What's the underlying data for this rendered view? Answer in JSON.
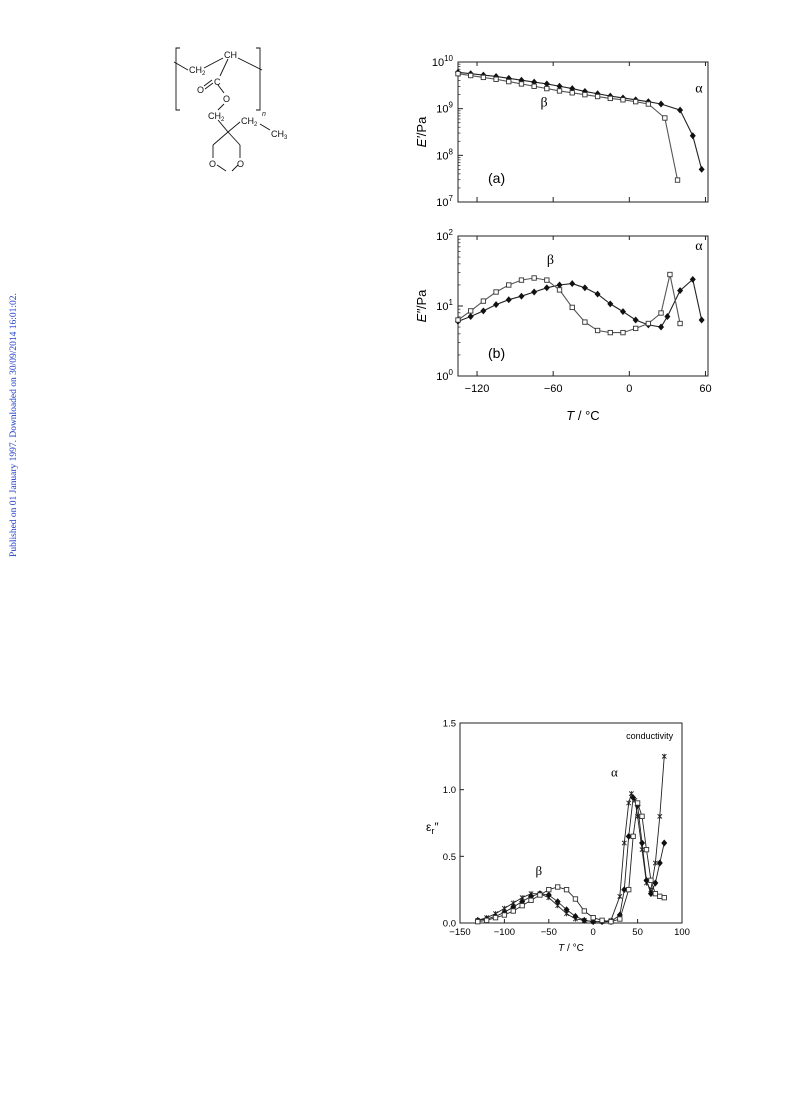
{
  "side_note": "Published on 01 January 1997. Downloaded on 30/09/2014 16:01:02.",
  "structure": {
    "labels": {
      "ch": "CH",
      "ch2_top": "CH",
      "o_carbonyl": "O",
      "c": "C",
      "o_ester": "O",
      "ch2_mid": "CH",
      "ch2_eth": "CH",
      "ch3": "CH",
      "n": "n",
      "o_ring_left": "O",
      "o_ring_right": "O",
      "sub2": "2",
      "sub3": "3"
    }
  },
  "chart_data": [
    {
      "id": "a",
      "type": "line",
      "panel_label": "(a)",
      "ylabel_var": "E′",
      "ylabel_unit": "/Pa",
      "yscale": "log",
      "ylim_exp": [
        7,
        10
      ],
      "yticks": [
        "10",
        "10",
        "10",
        "10"
      ],
      "ytick_exps": [
        "7",
        "8",
        "9",
        "10"
      ],
      "xlim": [
        -135,
        62
      ],
      "annotations": [
        {
          "text": "α",
          "x": 52,
          "y_exp": 9.35
        },
        {
          "text": "β",
          "x": -70,
          "y_exp": 9.05
        }
      ],
      "series": [
        {
          "marker": "diamond",
          "x": [
            -135,
            -125,
            -115,
            -105,
            -95,
            -85,
            -75,
            -65,
            -55,
            -45,
            -35,
            -25,
            -15,
            -5,
            5,
            15,
            25,
            40,
            50,
            57
          ],
          "y_exp": [
            9.78,
            9.75,
            9.72,
            9.69,
            9.65,
            9.61,
            9.57,
            9.53,
            9.48,
            9.43,
            9.37,
            9.32,
            9.27,
            9.23,
            9.19,
            9.15,
            9.1,
            8.97,
            8.42,
            7.7
          ]
        },
        {
          "marker": "square",
          "x": [
            -135,
            -125,
            -115,
            -105,
            -95,
            -85,
            -75,
            -65,
            -55,
            -45,
            -35,
            -25,
            -15,
            -5,
            5,
            15,
            28,
            38
          ],
          "y_exp": [
            9.75,
            9.71,
            9.67,
            9.63,
            9.58,
            9.53,
            9.48,
            9.43,
            9.38,
            9.34,
            9.3,
            9.26,
            9.22,
            9.19,
            9.15,
            9.1,
            8.8,
            7.47
          ]
        }
      ]
    },
    {
      "id": "b",
      "type": "line",
      "panel_label": "(b)",
      "ylabel_var": "E″",
      "ylabel_unit": "/Pa",
      "yscale": "log",
      "ylim_exp": [
        0,
        2
      ],
      "yticks": [
        "10",
        "10",
        "10"
      ],
      "ytick_exps": [
        "0",
        "1",
        "2"
      ],
      "xlim": [
        -135,
        62
      ],
      "xticks": [
        -120,
        -60,
        0,
        60
      ],
      "xtick_labels": [
        "−120",
        "−60",
        "0",
        "60"
      ],
      "xlabel_var": "T",
      "xlabel_unit": " / °C",
      "annotations": [
        {
          "text": "α",
          "x": 52,
          "y_exp": 1.8
        },
        {
          "text": "β",
          "x": -65,
          "y_exp": 1.6
        }
      ],
      "series": [
        {
          "marker": "diamond",
          "x": [
            -135,
            -125,
            -115,
            -105,
            -95,
            -85,
            -75,
            -65,
            -55,
            -45,
            -35,
            -25,
            -15,
            -5,
            5,
            15,
            25,
            30,
            40,
            50,
            57
          ],
          "y_exp": [
            0.78,
            0.85,
            0.93,
            1.02,
            1.09,
            1.14,
            1.2,
            1.26,
            1.3,
            1.32,
            1.26,
            1.17,
            1.03,
            0.92,
            0.8,
            0.73,
            0.7,
            0.85,
            1.22,
            1.38,
            0.8
          ]
        },
        {
          "marker": "square",
          "x": [
            -135,
            -125,
            -115,
            -105,
            -95,
            -85,
            -75,
            -65,
            -55,
            -45,
            -35,
            -25,
            -15,
            -5,
            5,
            15,
            25,
            32,
            40
          ],
          "y_exp": [
            0.8,
            0.93,
            1.07,
            1.2,
            1.3,
            1.37,
            1.4,
            1.37,
            1.23,
            0.98,
            0.77,
            0.65,
            0.62,
            0.62,
            0.68,
            0.75,
            0.9,
            1.45,
            0.75
          ]
        }
      ]
    },
    {
      "id": "c",
      "type": "line",
      "ylabel_var": "ε",
      "ylabel_sub": "r",
      "ylabel_prime": "″",
      "xlabel_var": "T",
      "xlabel_unit": " / °C",
      "ylim": [
        0,
        1.5
      ],
      "yticks": [
        0,
        0.5,
        1.0,
        1.5
      ],
      "ytick_labels": [
        "0.0",
        "0.5",
        "1.0",
        "1.5"
      ],
      "xlim": [
        -150,
        100
      ],
      "xticks": [
        -150,
        -100,
        -50,
        0,
        50,
        100
      ],
      "xtick_labels": [
        "−150",
        "−100",
        "−50",
        "0",
        "50",
        "100"
      ],
      "annotations": [
        {
          "text": "conductivity",
          "x": 90,
          "y": 1.38,
          "anchor": "end"
        },
        {
          "text": "α",
          "x": 20,
          "y": 1.1
        },
        {
          "text": "β",
          "x": -65,
          "y": 0.36
        }
      ],
      "series": [
        {
          "marker": "star",
          "x": [
            -130,
            -120,
            -110,
            -100,
            -90,
            -80,
            -70,
            -60,
            -50,
            -40,
            -30,
            -20,
            -10,
            0,
            10,
            20,
            30,
            35,
            40,
            43,
            47,
            50,
            55,
            60,
            65,
            70,
            75,
            80
          ],
          "y": [
            0.02,
            0.04,
            0.07,
            0.11,
            0.15,
            0.19,
            0.22,
            0.22,
            0.19,
            0.13,
            0.07,
            0.03,
            0.02,
            0.01,
            0.01,
            0.02,
            0.2,
            0.6,
            0.9,
            0.97,
            0.92,
            0.8,
            0.55,
            0.3,
            0.25,
            0.45,
            0.8,
            1.25
          ]
        },
        {
          "marker": "diamond",
          "x": [
            -130,
            -120,
            -110,
            -100,
            -90,
            -80,
            -70,
            -60,
            -50,
            -40,
            -30,
            -20,
            -10,
            0,
            10,
            20,
            30,
            35,
            40,
            45,
            50,
            55,
            60,
            65,
            70,
            75,
            80
          ],
          "y": [
            0.02,
            0.03,
            0.05,
            0.08,
            0.12,
            0.16,
            0.2,
            0.22,
            0.21,
            0.16,
            0.1,
            0.05,
            0.02,
            0.01,
            0.01,
            0.01,
            0.06,
            0.25,
            0.65,
            0.94,
            0.88,
            0.6,
            0.32,
            0.22,
            0.3,
            0.45,
            0.6
          ]
        },
        {
          "marker": "square",
          "x": [
            -130,
            -120,
            -110,
            -100,
            -90,
            -80,
            -70,
            -60,
            -50,
            -40,
            -30,
            -20,
            -10,
            0,
            10,
            20,
            30,
            40,
            45,
            50,
            55,
            60,
            65,
            70,
            75,
            80
          ],
          "y": [
            0.01,
            0.02,
            0.04,
            0.06,
            0.09,
            0.13,
            0.17,
            0.21,
            0.25,
            0.27,
            0.25,
            0.18,
            0.09,
            0.04,
            0.02,
            0.01,
            0.03,
            0.25,
            0.65,
            0.9,
            0.8,
            0.55,
            0.32,
            0.22,
            0.2,
            0.19
          ]
        }
      ]
    }
  ]
}
